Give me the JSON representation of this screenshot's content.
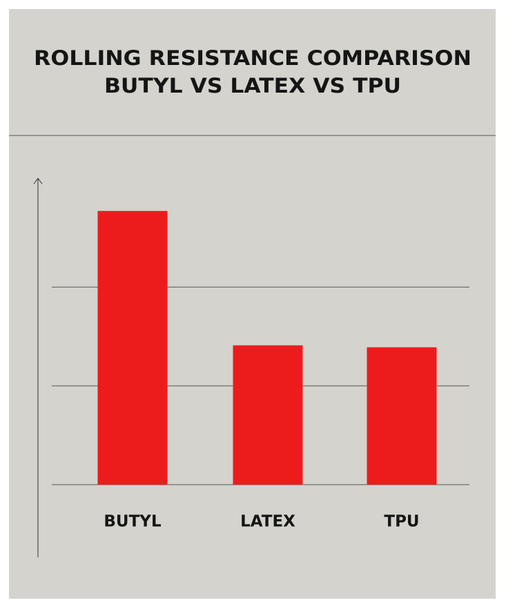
{
  "chart_data": {
    "type": "bar",
    "title": "ROLLING RESISTANCE COMPARISON",
    "subtitle": "BUTYL VS LATEX VS TPU",
    "categories": [
      "BUTYL",
      "LATEX",
      "TPU"
    ],
    "values": [
      2.77,
      1.41,
      1.39
    ],
    "color": "#ec1c1c",
    "ylim": [
      0,
      3.1
    ],
    "yticks": [
      0,
      1,
      2
    ],
    "grid": true
  }
}
